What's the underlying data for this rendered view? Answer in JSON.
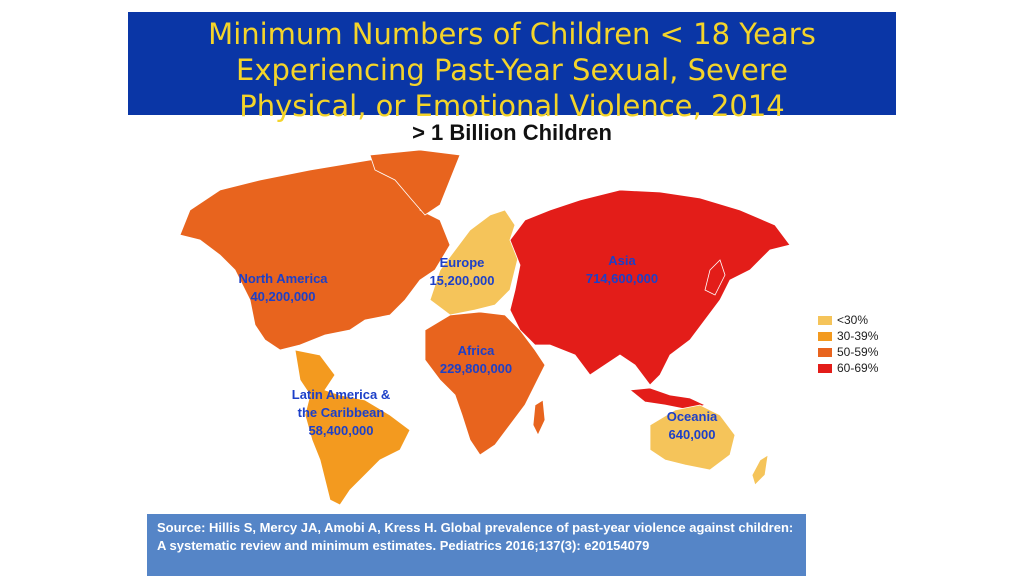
{
  "title_lines": [
    "Minimum Numbers of Children < 18 Years",
    "Experiencing Past-Year Sexual, Severe",
    "Physical, or Emotional Violence, 2014"
  ],
  "subtitle": "> 1 Billion Children",
  "regions": {
    "north_america": {
      "name": "North America",
      "value": "40,200,000",
      "color": "#e8641e"
    },
    "latin_america": {
      "name": "Latin America &",
      "name2": "the Caribbean",
      "value": "58,400,000",
      "color": "#f39a1f"
    },
    "europe": {
      "name": "Europe",
      "value": "15,200,000",
      "color": "#f5c45a"
    },
    "africa": {
      "name": "Africa",
      "value": "229,800,000",
      "color": "#e8641e"
    },
    "asia": {
      "name": "Asia",
      "value": "714,600,000",
      "color": "#e31d19"
    },
    "oceania": {
      "name": "Oceania",
      "value": "640,000",
      "color": "#f5c45a"
    }
  },
  "legend": [
    {
      "label": "<30%",
      "color": "#f5c45a"
    },
    {
      "label": "30-39%",
      "color": "#f39a1f"
    },
    {
      "label": "50-59%",
      "color": "#e8641e"
    },
    {
      "label": "60-69%",
      "color": "#e31d19"
    }
  ],
  "source": "Source: Hillis S, Mercy JA, Amobi A, Kress H. Global prevalence of past-year violence against children: A systematic review and minimum estimates. Pediatrics 2016;137(3): e20154079"
}
